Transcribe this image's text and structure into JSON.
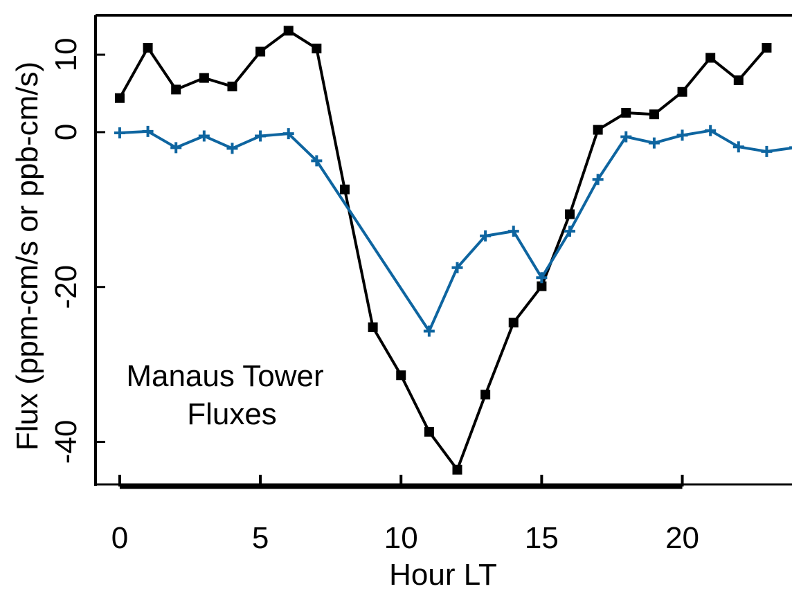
{
  "chart_data": {
    "type": "line",
    "annotation": [
      "Manaus Tower",
      "Fluxes"
    ],
    "x_label": "Hour LT",
    "y_label": "Flux (ppm-cm/s or ppb-cm/s)",
    "series": [
      {
        "color": "#000000",
        "marker": "square",
        "x": [
          0,
          1,
          2,
          3,
          4,
          5,
          6,
          7,
          8,
          9,
          10,
          11,
          12,
          13,
          14,
          15,
          16,
          17,
          18,
          19,
          20,
          21,
          22,
          23
        ],
        "values": [
          4.4,
          10.9,
          5.5,
          7.0,
          5.9,
          10.4,
          13.1,
          10.8,
          -7.4,
          -25.2,
          -31.4,
          -38.7,
          -43.6,
          -33.9,
          -24.6,
          -19.9,
          -10.6,
          0.3,
          2.5,
          2.3,
          5.2,
          9.6,
          6.7,
          10.9
        ]
      },
      {
        "color": "#0e65a0",
        "marker": "plus",
        "x": [
          0,
          1,
          2,
          3,
          4,
          5,
          6,
          7,
          11,
          12,
          13,
          14,
          15,
          16,
          17,
          18,
          19,
          20,
          21,
          22,
          23,
          24
        ],
        "values": [
          -0.1,
          0.1,
          -2.0,
          -0.5,
          -2.1,
          -0.5,
          -0.2,
          -3.7,
          -25.7,
          -17.5,
          -13.4,
          -12.8,
          -18.8,
          -12.8,
          -6.1,
          -0.6,
          -1.4,
          -0.4,
          0.2,
          -1.9,
          -2.5,
          -2.0
        ]
      }
    ],
    "xlim": [
      -0.86,
      23.9
    ],
    "xticks": [
      0,
      5,
      10,
      15,
      20
    ],
    "ylim": [
      -45.5,
      15.1
    ],
    "yticks": [
      10,
      0,
      -20,
      -40
    ]
  }
}
